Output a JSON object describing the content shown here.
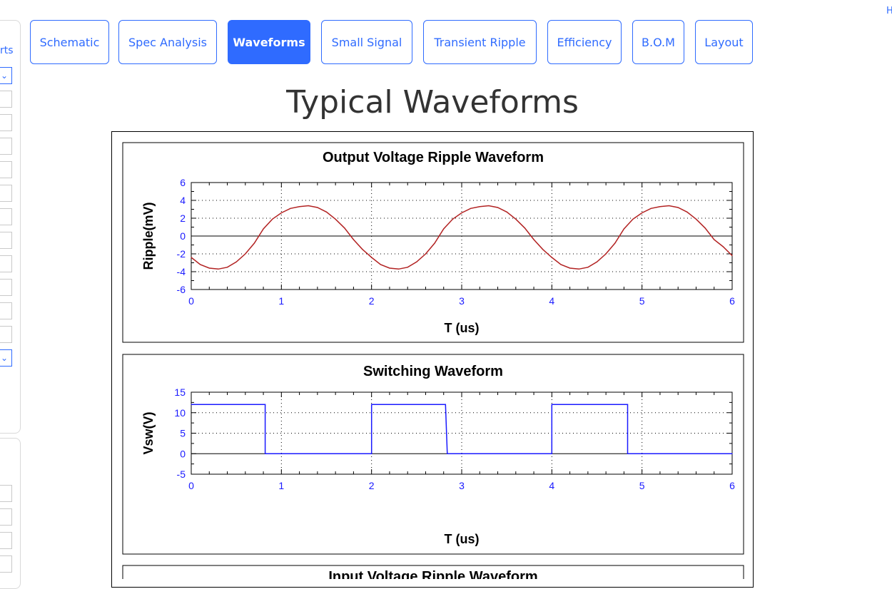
{
  "top_right_link": "H",
  "sidebar": {
    "label_fragment": "rts"
  },
  "tabs": [
    {
      "label": "Schematic",
      "active": false
    },
    {
      "label": "Spec Analysis",
      "active": false
    },
    {
      "label": "Waveforms",
      "active": true
    },
    {
      "label": "Small Signal",
      "active": false
    },
    {
      "label": "Transient Ripple",
      "active": false
    },
    {
      "label": "Efficiency",
      "active": false
    },
    {
      "label": "B.O.M",
      "active": false
    },
    {
      "label": "Layout",
      "active": false
    }
  ],
  "page_title": "Typical Waveforms",
  "colors": {
    "accent": "#2f6bff",
    "ripple_line": "#b22222",
    "switch_line": "#1a1aff",
    "tick_labels": "#1a1aff"
  },
  "chart_data": [
    {
      "type": "line",
      "title": "Output Voltage Ripple Waveform",
      "xlabel": "T (us)",
      "ylabel": "Ripple(mV)",
      "xlim": [
        0,
        6
      ],
      "ylim": [
        -6,
        6
      ],
      "xticks": [
        "0",
        "1",
        "2",
        "3",
        "4",
        "5",
        "6"
      ],
      "yticks": [
        "6",
        "4",
        "2",
        "0",
        "-2",
        "-4",
        "-6"
      ],
      "grid": true,
      "series": [
        {
          "x": [
            0,
            0.1,
            0.2,
            0.3,
            0.4,
            0.5,
            0.6,
            0.7,
            0.8,
            0.9,
            1,
            1.1,
            1.2,
            1.3,
            1.4,
            1.5,
            1.6,
            1.7,
            1.8,
            1.9,
            2,
            2.1,
            2.2,
            2.3,
            2.4,
            2.5,
            2.6,
            2.7,
            2.8,
            2.9,
            3,
            3.1,
            3.2,
            3.3,
            3.4,
            3.5,
            3.6,
            3.7,
            3.8,
            3.9,
            4,
            4.1,
            4.2,
            4.3,
            4.4,
            4.5,
            4.6,
            4.7,
            4.8,
            4.9,
            5,
            5.1,
            5.2,
            5.3,
            5.4,
            5.5,
            5.6,
            5.7,
            5.8,
            5.9,
            6
          ],
          "values": [
            -2.4,
            -3.2,
            -3.6,
            -3.7,
            -3.5,
            -2.9,
            -2.0,
            -0.8,
            0.8,
            1.9,
            2.6,
            3.1,
            3.3,
            3.4,
            3.2,
            2.7,
            1.9,
            0.9,
            -0.4,
            -1.5,
            -2.4,
            -3.2,
            -3.6,
            -3.7,
            -3.5,
            -2.9,
            -2.0,
            -0.8,
            0.8,
            1.9,
            2.6,
            3.1,
            3.3,
            3.4,
            3.2,
            2.7,
            1.9,
            0.9,
            -0.4,
            -1.5,
            -2.4,
            -3.2,
            -3.6,
            -3.7,
            -3.5,
            -2.9,
            -2.0,
            -0.8,
            0.8,
            1.9,
            2.6,
            3.1,
            3.3,
            3.4,
            3.2,
            2.7,
            1.9,
            0.9,
            -0.4,
            -1.2,
            -2.2
          ]
        }
      ]
    },
    {
      "type": "line",
      "title": "Switching Waveform",
      "xlabel": "T (us)",
      "ylabel": "Vsw(V)",
      "xlim": [
        0,
        6
      ],
      "ylim": [
        -5,
        15
      ],
      "xticks": [
        "0",
        "1",
        "2",
        "3",
        "4",
        "5",
        "6"
      ],
      "yticks": [
        "15",
        "10",
        "5",
        "0",
        "-5"
      ],
      "grid": true,
      "series": [
        {
          "x": [
            0,
            0.82,
            0.82,
            2.0,
            2.0,
            2.82,
            2.84,
            4.0,
            4.0,
            4.84,
            4.84,
            6.0
          ],
          "values": [
            12,
            12,
            0,
            0,
            12,
            12,
            0,
            0,
            12,
            12,
            0,
            0
          ]
        }
      ]
    },
    {
      "type": "line",
      "title": "Input Voltage Ripple Waveform"
    }
  ]
}
